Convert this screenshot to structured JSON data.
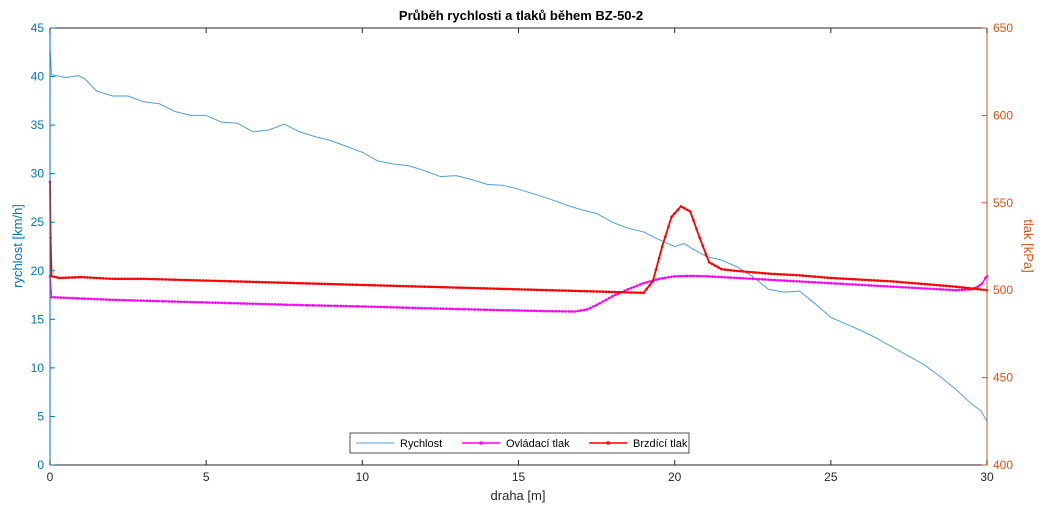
{
  "chart_data": {
    "type": "line",
    "title": "Průběh rychlosti a tlaků během BZ-50-2",
    "xlabel": "draha [m]",
    "ylabel_left": "rychlost [km/h]",
    "ylabel_right": "tlak [kPa]",
    "xlim": [
      0,
      30
    ],
    "ylim_left": [
      0,
      45
    ],
    "ylim_right": [
      400,
      650
    ],
    "x_ticks": [
      "0",
      "5",
      "10",
      "15",
      "20",
      "25",
      "30"
    ],
    "y_left_ticks": [
      "0",
      "5",
      "10",
      "15",
      "20",
      "25",
      "30",
      "35",
      "40",
      "45"
    ],
    "y_right_ticks": [
      "400",
      "450",
      "500",
      "550",
      "600",
      "650"
    ],
    "grid": false,
    "legend_position": "bottom-center",
    "colors": {
      "left_axis": "#0072BD",
      "right_axis": "#D95319",
      "rychlost": "#4F9FD6",
      "ovladaci": "#FF00FF",
      "brzdici": "#FF0000"
    },
    "series": [
      {
        "name": "Rychlost",
        "axis": "left",
        "marker": "none",
        "points": [
          [
            0,
            42.8
          ],
          [
            0.05,
            40.2
          ],
          [
            0.5,
            39.9
          ],
          [
            0.9,
            40.1
          ],
          [
            1.1,
            39.8
          ],
          [
            1.5,
            38.5
          ],
          [
            2,
            38.0
          ],
          [
            2.5,
            38.0
          ],
          [
            3,
            37.4
          ],
          [
            3.5,
            37.2
          ],
          [
            4,
            36.4
          ],
          [
            4.5,
            36.0
          ],
          [
            5,
            36.0
          ],
          [
            5.5,
            35.3
          ],
          [
            6,
            35.2
          ],
          [
            6.5,
            34.3
          ],
          [
            7,
            34.5
          ],
          [
            7.5,
            35.1
          ],
          [
            8,
            34.3
          ],
          [
            8.5,
            33.8
          ],
          [
            9,
            33.4
          ],
          [
            9.5,
            32.8
          ],
          [
            10,
            32.2
          ],
          [
            10.5,
            31.3
          ],
          [
            11,
            31.0
          ],
          [
            11.5,
            30.8
          ],
          [
            12,
            30.3
          ],
          [
            12.5,
            29.7
          ],
          [
            13,
            29.8
          ],
          [
            13.5,
            29.4
          ],
          [
            14,
            28.9
          ],
          [
            14.5,
            28.8
          ],
          [
            15,
            28.4
          ],
          [
            15.5,
            27.9
          ],
          [
            16,
            27.4
          ],
          [
            16.5,
            26.8
          ],
          [
            17,
            26.3
          ],
          [
            17.5,
            25.9
          ],
          [
            18,
            25.0
          ],
          [
            18.5,
            24.4
          ],
          [
            19,
            24.0
          ],
          [
            19.5,
            23.2
          ],
          [
            20,
            22.5
          ],
          [
            20.3,
            22.8
          ],
          [
            20.6,
            22.2
          ],
          [
            21,
            21.5
          ],
          [
            21.5,
            21.1
          ],
          [
            22,
            20.4
          ],
          [
            22.5,
            19.4
          ],
          [
            23,
            18.1
          ],
          [
            23.5,
            17.8
          ],
          [
            24,
            17.9
          ],
          [
            24.5,
            16.6
          ],
          [
            25,
            15.2
          ],
          [
            25.5,
            14.5
          ],
          [
            26,
            13.8
          ],
          [
            26.5,
            13.0
          ],
          [
            27,
            12.1
          ],
          [
            27.5,
            11.2
          ],
          [
            28,
            10.3
          ],
          [
            28.5,
            9.1
          ],
          [
            29,
            7.8
          ],
          [
            29.5,
            6.3
          ],
          [
            29.8,
            5.6
          ],
          [
            30,
            4.5
          ]
        ]
      },
      {
        "name": "Ovládací tlak",
        "axis": "right",
        "marker": "dot",
        "points": [
          [
            0,
            508
          ],
          [
            0.05,
            496
          ],
          [
            2,
            494.5
          ],
          [
            4,
            493.5
          ],
          [
            6,
            492.5
          ],
          [
            8,
            491.5
          ],
          [
            10,
            490.7
          ],
          [
            12,
            489.7
          ],
          [
            14,
            488.8
          ],
          [
            16,
            488.0
          ],
          [
            16.8,
            487.8
          ],
          [
            17.2,
            489.0
          ],
          [
            17.6,
            492.5
          ],
          [
            18,
            496.5
          ],
          [
            18.5,
            500.5
          ],
          [
            19,
            504
          ],
          [
            19.5,
            506.5
          ],
          [
            20,
            508
          ],
          [
            20.5,
            508.2
          ],
          [
            21,
            508
          ],
          [
            22,
            507
          ],
          [
            23,
            506
          ],
          [
            24,
            505
          ],
          [
            25,
            504
          ],
          [
            26,
            503
          ],
          [
            27,
            502
          ],
          [
            28,
            501
          ],
          [
            29,
            500
          ],
          [
            29.5,
            500.5
          ],
          [
            29.7,
            502
          ],
          [
            29.85,
            504
          ],
          [
            29.95,
            507
          ],
          [
            30,
            508
          ]
        ]
      },
      {
        "name": "Brzdící tlak",
        "axis": "right",
        "marker": "dot",
        "points": [
          [
            0,
            562
          ],
          [
            0.02,
            530
          ],
          [
            0.05,
            508
          ],
          [
            0.3,
            507
          ],
          [
            1,
            507.5
          ],
          [
            2,
            506.5
          ],
          [
            3,
            506.5
          ],
          [
            4,
            506
          ],
          [
            5,
            505.5
          ],
          [
            6,
            505
          ],
          [
            7,
            504.5
          ],
          [
            8,
            504
          ],
          [
            9,
            503.5
          ],
          [
            10,
            503
          ],
          [
            11,
            502.5
          ],
          [
            12,
            502
          ],
          [
            13,
            501.5
          ],
          [
            14,
            501
          ],
          [
            15,
            500.5
          ],
          [
            16,
            500
          ],
          [
            17,
            499.5
          ],
          [
            18,
            499
          ],
          [
            19,
            498.5
          ],
          [
            19.3,
            505
          ],
          [
            19.6,
            525
          ],
          [
            19.9,
            542
          ],
          [
            20.2,
            548
          ],
          [
            20.5,
            545
          ],
          [
            20.8,
            530
          ],
          [
            21.1,
            516
          ],
          [
            21.5,
            512
          ],
          [
            22,
            511
          ],
          [
            23,
            509.5
          ],
          [
            24,
            508.5
          ],
          [
            25,
            507
          ],
          [
            26,
            506
          ],
          [
            27,
            505
          ],
          [
            28,
            503.5
          ],
          [
            29,
            502
          ],
          [
            30,
            500
          ]
        ]
      }
    ]
  }
}
